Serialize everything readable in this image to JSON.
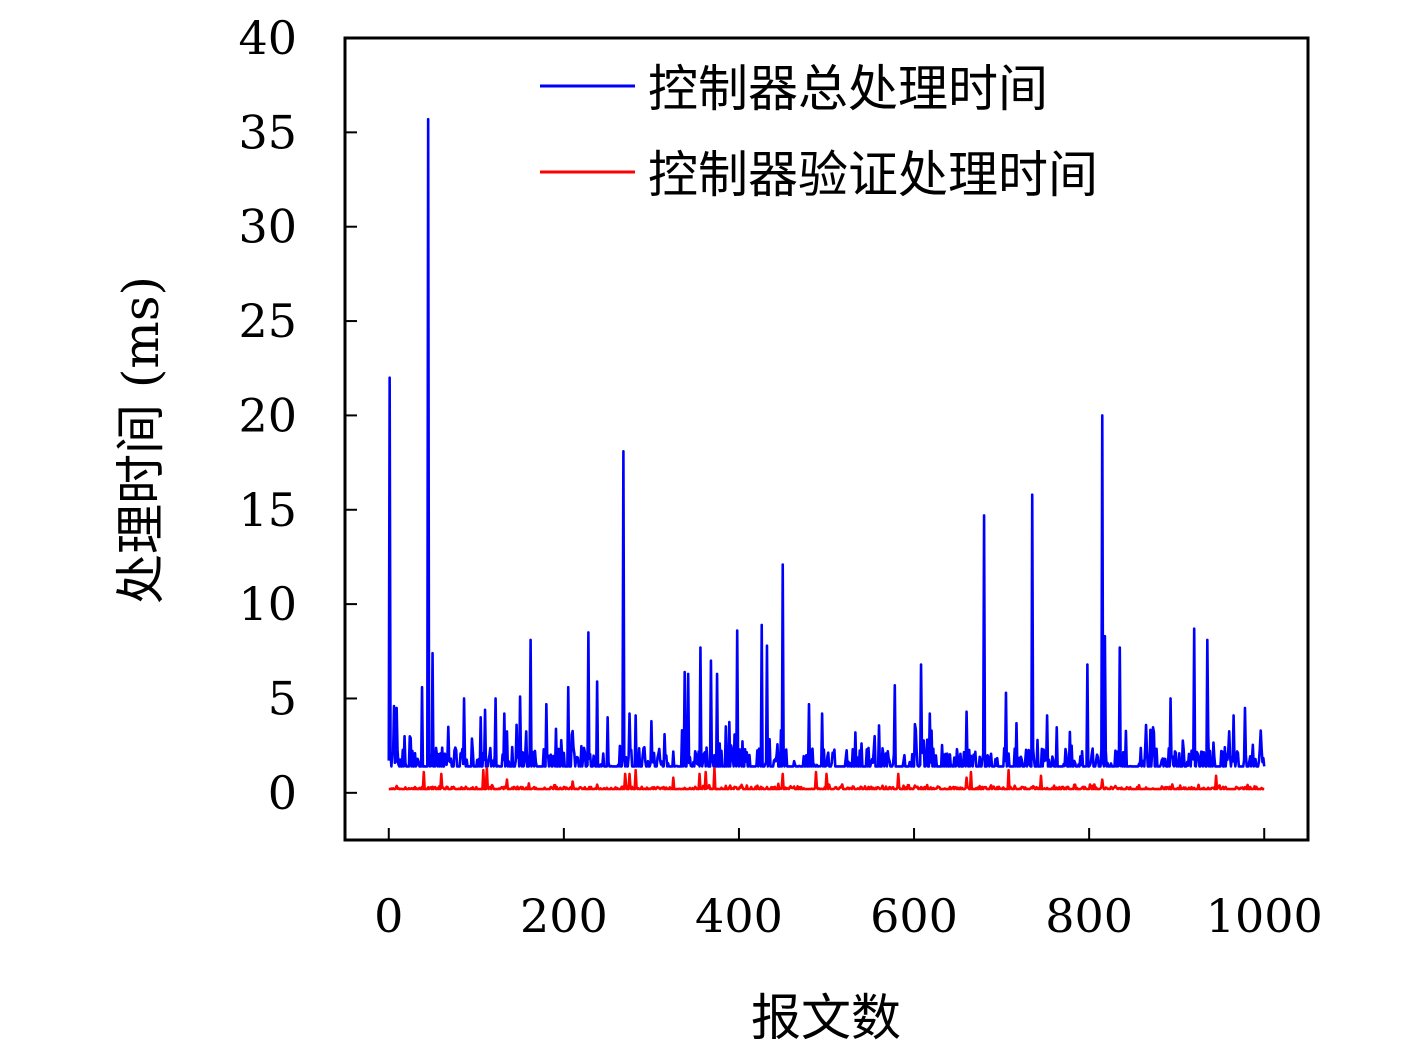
{
  "chart_data": {
    "type": "line",
    "title": "",
    "xlabel": "报文数",
    "ylabel": "处理时间 (ms)",
    "xlim": [
      -50,
      1050
    ],
    "ylim": [
      -2.5,
      40
    ],
    "xticks": [
      0,
      200,
      400,
      600,
      800,
      1000
    ],
    "yticks": [
      0,
      5,
      10,
      15,
      20,
      25,
      30,
      35,
      40
    ],
    "grid": false,
    "legend_position": "top-right",
    "series": [
      {
        "name": "控制器总处理时间",
        "color": "#0000ff",
        "baseline": 1.4,
        "noise": 1.0,
        "spikes": [
          [
            1,
            22.0
          ],
          [
            6,
            4.6
          ],
          [
            9,
            4.5
          ],
          [
            18,
            3.0
          ],
          [
            25,
            2.9
          ],
          [
            38,
            5.6
          ],
          [
            45,
            35.7
          ],
          [
            50,
            7.4
          ],
          [
            68,
            3.5
          ],
          [
            86,
            5.0
          ],
          [
            105,
            4.0
          ],
          [
            110,
            4.4
          ],
          [
            122,
            5.0
          ],
          [
            132,
            4.2
          ],
          [
            150,
            5.1
          ],
          [
            162,
            8.1
          ],
          [
            180,
            4.7
          ],
          [
            205,
            5.6
          ],
          [
            228,
            8.5
          ],
          [
            238,
            5.9
          ],
          [
            250,
            4.0
          ],
          [
            268,
            18.1
          ],
          [
            275,
            4.2
          ],
          [
            282,
            4.1
          ],
          [
            300,
            3.8
          ],
          [
            338,
            6.4
          ],
          [
            342,
            6.3
          ],
          [
            356,
            7.7
          ],
          [
            368,
            7.0
          ],
          [
            375,
            6.3
          ],
          [
            398,
            8.6
          ],
          [
            426,
            8.9
          ],
          [
            432,
            7.8
          ],
          [
            450,
            12.1
          ],
          [
            480,
            4.7
          ],
          [
            495,
            4.2
          ],
          [
            533,
            3.2
          ],
          [
            555,
            3.0
          ],
          [
            578,
            5.7
          ],
          [
            608,
            6.8
          ],
          [
            618,
            4.2
          ],
          [
            660,
            4.3
          ],
          [
            680,
            14.7
          ],
          [
            705,
            5.3
          ],
          [
            735,
            15.8
          ],
          [
            752,
            4.1
          ],
          [
            780,
            2.5
          ],
          [
            798,
            6.8
          ],
          [
            815,
            20.0
          ],
          [
            818,
            8.3
          ],
          [
            835,
            7.7
          ],
          [
            865,
            3.6
          ],
          [
            893,
            5.0
          ],
          [
            920,
            8.7
          ],
          [
            935,
            8.1
          ],
          [
            965,
            4.1
          ],
          [
            978,
            4.5
          ],
          [
            996,
            3.3
          ]
        ]
      },
      {
        "name": "控制器验证处理时间",
        "color": "#ff0000",
        "baseline": 0.2,
        "noise": 0.12,
        "spikes": [
          [
            40,
            1.1
          ],
          [
            60,
            1.0
          ],
          [
            108,
            1.2
          ],
          [
            112,
            1.3
          ],
          [
            135,
            0.7
          ],
          [
            160,
            0.5
          ],
          [
            210,
            0.6
          ],
          [
            270,
            1.0
          ],
          [
            275,
            1.0
          ],
          [
            282,
            1.2
          ],
          [
            325,
            0.8
          ],
          [
            355,
            1.0
          ],
          [
            362,
            1.1
          ],
          [
            372,
            1.3
          ],
          [
            450,
            1.0
          ],
          [
            488,
            1.1
          ],
          [
            500,
            1.0
          ],
          [
            582,
            1.0
          ],
          [
            660,
            0.8
          ],
          [
            665,
            1.1
          ],
          [
            708,
            1.2
          ],
          [
            745,
            0.9
          ],
          [
            815,
            0.7
          ],
          [
            945,
            0.9
          ]
        ]
      }
    ]
  }
}
